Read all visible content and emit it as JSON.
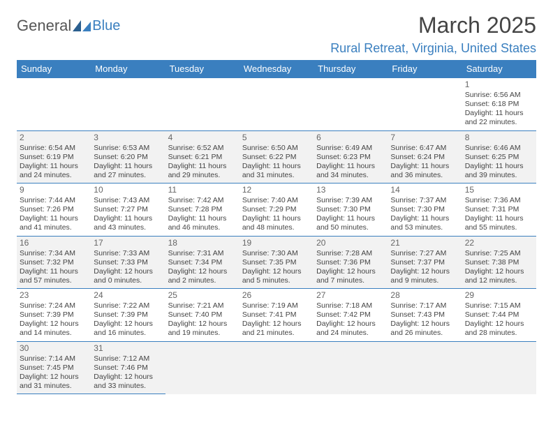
{
  "logo": {
    "text1": "General",
    "text2": "Blue"
  },
  "title": "March 2025",
  "location": "Rural Retreat, Virginia, United States",
  "dayHeaders": [
    "Sunday",
    "Monday",
    "Tuesday",
    "Wednesday",
    "Thursday",
    "Friday",
    "Saturday"
  ],
  "colors": {
    "headerBg": "#3a7fbf",
    "headerText": "#ffffff",
    "accent": "#3a7fbf",
    "shade": "#f2f2f2",
    "text": "#444444"
  },
  "weeks": [
    [
      null,
      null,
      null,
      null,
      null,
      null,
      {
        "n": "1",
        "sr": "Sunrise: 6:56 AM",
        "ss": "Sunset: 6:18 PM",
        "dl": "Daylight: 11 hours and 22 minutes."
      }
    ],
    [
      {
        "n": "2",
        "sr": "Sunrise: 6:54 AM",
        "ss": "Sunset: 6:19 PM",
        "dl": "Daylight: 11 hours and 24 minutes."
      },
      {
        "n": "3",
        "sr": "Sunrise: 6:53 AM",
        "ss": "Sunset: 6:20 PM",
        "dl": "Daylight: 11 hours and 27 minutes."
      },
      {
        "n": "4",
        "sr": "Sunrise: 6:52 AM",
        "ss": "Sunset: 6:21 PM",
        "dl": "Daylight: 11 hours and 29 minutes."
      },
      {
        "n": "5",
        "sr": "Sunrise: 6:50 AM",
        "ss": "Sunset: 6:22 PM",
        "dl": "Daylight: 11 hours and 31 minutes."
      },
      {
        "n": "6",
        "sr": "Sunrise: 6:49 AM",
        "ss": "Sunset: 6:23 PM",
        "dl": "Daylight: 11 hours and 34 minutes."
      },
      {
        "n": "7",
        "sr": "Sunrise: 6:47 AM",
        "ss": "Sunset: 6:24 PM",
        "dl": "Daylight: 11 hours and 36 minutes."
      },
      {
        "n": "8",
        "sr": "Sunrise: 6:46 AM",
        "ss": "Sunset: 6:25 PM",
        "dl": "Daylight: 11 hours and 39 minutes."
      }
    ],
    [
      {
        "n": "9",
        "sr": "Sunrise: 7:44 AM",
        "ss": "Sunset: 7:26 PM",
        "dl": "Daylight: 11 hours and 41 minutes."
      },
      {
        "n": "10",
        "sr": "Sunrise: 7:43 AM",
        "ss": "Sunset: 7:27 PM",
        "dl": "Daylight: 11 hours and 43 minutes."
      },
      {
        "n": "11",
        "sr": "Sunrise: 7:42 AM",
        "ss": "Sunset: 7:28 PM",
        "dl": "Daylight: 11 hours and 46 minutes."
      },
      {
        "n": "12",
        "sr": "Sunrise: 7:40 AM",
        "ss": "Sunset: 7:29 PM",
        "dl": "Daylight: 11 hours and 48 minutes."
      },
      {
        "n": "13",
        "sr": "Sunrise: 7:39 AM",
        "ss": "Sunset: 7:30 PM",
        "dl": "Daylight: 11 hours and 50 minutes."
      },
      {
        "n": "14",
        "sr": "Sunrise: 7:37 AM",
        "ss": "Sunset: 7:30 PM",
        "dl": "Daylight: 11 hours and 53 minutes."
      },
      {
        "n": "15",
        "sr": "Sunrise: 7:36 AM",
        "ss": "Sunset: 7:31 PM",
        "dl": "Daylight: 11 hours and 55 minutes."
      }
    ],
    [
      {
        "n": "16",
        "sr": "Sunrise: 7:34 AM",
        "ss": "Sunset: 7:32 PM",
        "dl": "Daylight: 11 hours and 57 minutes."
      },
      {
        "n": "17",
        "sr": "Sunrise: 7:33 AM",
        "ss": "Sunset: 7:33 PM",
        "dl": "Daylight: 12 hours and 0 minutes."
      },
      {
        "n": "18",
        "sr": "Sunrise: 7:31 AM",
        "ss": "Sunset: 7:34 PM",
        "dl": "Daylight: 12 hours and 2 minutes."
      },
      {
        "n": "19",
        "sr": "Sunrise: 7:30 AM",
        "ss": "Sunset: 7:35 PM",
        "dl": "Daylight: 12 hours and 5 minutes."
      },
      {
        "n": "20",
        "sr": "Sunrise: 7:28 AM",
        "ss": "Sunset: 7:36 PM",
        "dl": "Daylight: 12 hours and 7 minutes."
      },
      {
        "n": "21",
        "sr": "Sunrise: 7:27 AM",
        "ss": "Sunset: 7:37 PM",
        "dl": "Daylight: 12 hours and 9 minutes."
      },
      {
        "n": "22",
        "sr": "Sunrise: 7:25 AM",
        "ss": "Sunset: 7:38 PM",
        "dl": "Daylight: 12 hours and 12 minutes."
      }
    ],
    [
      {
        "n": "23",
        "sr": "Sunrise: 7:24 AM",
        "ss": "Sunset: 7:39 PM",
        "dl": "Daylight: 12 hours and 14 minutes."
      },
      {
        "n": "24",
        "sr": "Sunrise: 7:22 AM",
        "ss": "Sunset: 7:39 PM",
        "dl": "Daylight: 12 hours and 16 minutes."
      },
      {
        "n": "25",
        "sr": "Sunrise: 7:21 AM",
        "ss": "Sunset: 7:40 PM",
        "dl": "Daylight: 12 hours and 19 minutes."
      },
      {
        "n": "26",
        "sr": "Sunrise: 7:19 AM",
        "ss": "Sunset: 7:41 PM",
        "dl": "Daylight: 12 hours and 21 minutes."
      },
      {
        "n": "27",
        "sr": "Sunrise: 7:18 AM",
        "ss": "Sunset: 7:42 PM",
        "dl": "Daylight: 12 hours and 24 minutes."
      },
      {
        "n": "28",
        "sr": "Sunrise: 7:17 AM",
        "ss": "Sunset: 7:43 PM",
        "dl": "Daylight: 12 hours and 26 minutes."
      },
      {
        "n": "29",
        "sr": "Sunrise: 7:15 AM",
        "ss": "Sunset: 7:44 PM",
        "dl": "Daylight: 12 hours and 28 minutes."
      }
    ],
    [
      {
        "n": "30",
        "sr": "Sunrise: 7:14 AM",
        "ss": "Sunset: 7:45 PM",
        "dl": "Daylight: 12 hours and 31 minutes."
      },
      {
        "n": "31",
        "sr": "Sunrise: 7:12 AM",
        "ss": "Sunset: 7:46 PM",
        "dl": "Daylight: 12 hours and 33 minutes."
      },
      null,
      null,
      null,
      null,
      null
    ]
  ]
}
